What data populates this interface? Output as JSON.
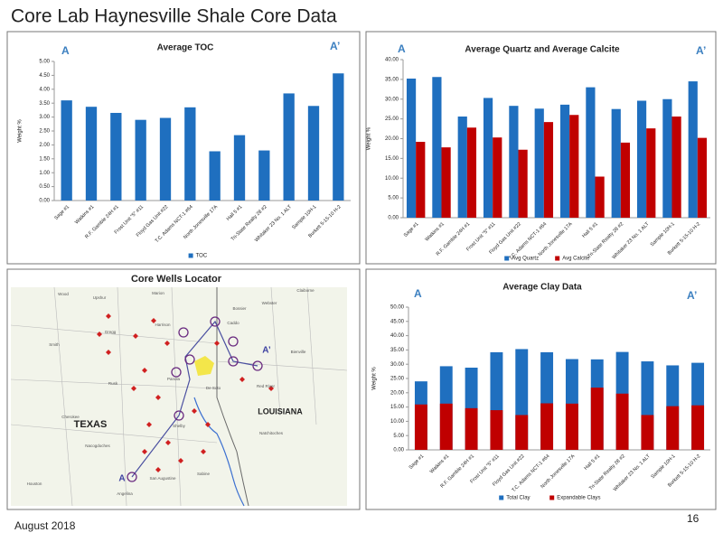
{
  "title": "Core Lab Haynesville Shale Core Data",
  "footer": "August 2018",
  "page_number": "16",
  "chart_data": [
    {
      "type": "bar",
      "title": "Average TOC",
      "annotations": [
        "A",
        "A’"
      ],
      "y_label": "Weight %",
      "categories": [
        "Sage #1",
        "Watkins #1",
        "R.F. Gamble 24H #1",
        "Frost Unit \"5\" #11",
        "Floyd Gas Unit #22",
        "T.C. Adams NCT-1 #64",
        "North Jonesville 17A",
        "Hall 5 #1",
        "Tri-State Realty 28 #2",
        "Whitaker 23 No. 1 ALT",
        "Sample 10H-1",
        "Burkett 5-15-10 H-2"
      ],
      "series": [
        {
          "name": "TOC",
          "color": "#1f6fbf",
          "values": [
            3.6,
            3.37,
            3.15,
            2.9,
            2.97,
            3.35,
            1.77,
            2.35,
            1.8,
            3.85,
            3.4,
            4.57
          ]
        }
      ],
      "ylim": [
        0,
        5
      ],
      "yticks": [
        {
          "value": 0,
          "label": "0.00"
        },
        {
          "value": 0.5,
          "label": "0.50"
        },
        {
          "value": 1,
          "label": "1.00"
        },
        {
          "value": 1.5,
          "label": "1.50"
        },
        {
          "value": 2,
          "label": "2.00"
        },
        {
          "value": 2.5,
          "label": "2.50"
        },
        {
          "value": 3,
          "label": "3.00"
        },
        {
          "value": 3.5,
          "label": "3.50"
        },
        {
          "value": 4,
          "label": "4.00"
        },
        {
          "value": 4.5,
          "label": "4.50"
        },
        {
          "value": 5,
          "label": "5.00"
        }
      ],
      "legend": "bottom",
      "bar_layout": "grouped"
    },
    {
      "type": "bar",
      "title": "Average Quartz and Average Calcite",
      "annotations": [
        "A",
        "A’"
      ],
      "y_label": "Weight %",
      "categories": [
        "Sage #1",
        "Watkins #1",
        "R.F. Gamble 24H #1",
        "Frost Unit \"5\" #11",
        "Floyd Gas Unit #22",
        "T.C. Adams NCT-1 #64",
        "North Jonesville 17A",
        "Hall 5 #1",
        "Tri-State Realty 28 #2",
        "Whitaker 23 No. 1 ALT",
        "Sample 10H-1",
        "Burkett 5-15-10 H-2"
      ],
      "series": [
        {
          "name": "Avg Quartz",
          "color": "#1f6fbf",
          "values": [
            35.2,
            35.6,
            25.6,
            30.3,
            28.3,
            27.6,
            28.6,
            33,
            27.5,
            29.6,
            30,
            34.5
          ]
        },
        {
          "name": "Avg Calcite",
          "color": "#c00000",
          "values": [
            19.2,
            17.8,
            22.8,
            20.3,
            17.2,
            24.2,
            26,
            10.4,
            19,
            22.6,
            25.6,
            20.2
          ]
        }
      ],
      "ylim": [
        0,
        40
      ],
      "yticks": [
        {
          "value": 0,
          "label": "0.00"
        },
        {
          "value": 5,
          "label": "5.00"
        },
        {
          "value": 10,
          "label": "10.00"
        },
        {
          "value": 15,
          "label": "15.00"
        },
        {
          "value": 20,
          "label": "20.00"
        },
        {
          "value": 25,
          "label": "25.00"
        },
        {
          "value": 30,
          "label": "30.00"
        },
        {
          "value": 35,
          "label": "35.00"
        },
        {
          "value": 40,
          "label": "40.00"
        }
      ],
      "legend": "bottom",
      "bar_layout": "grouped"
    },
    {
      "type": "bar",
      "title": "Average Clay Data",
      "annotations": [
        "A",
        "A’"
      ],
      "y_label": "Weight %",
      "categories": [
        "Sage #1",
        "Watkins #1",
        "R.F. Gamble 24H #1",
        "Frost Unit \"5\" #11",
        "Floyd Gas Unit #22",
        "T.C. Adams NCT-1 #64",
        "North Jonesville 17A",
        "Hall 5 #1",
        "Tri-State Realty 28 #2",
        "Whitaker 23 No. 1 ALT",
        "Sample 10H-1",
        "Burkett 5-15-10 H-2"
      ],
      "series": [
        {
          "name": "Total Clay",
          "color": "#1f6fbf",
          "values": [
            24,
            29.3,
            28.8,
            34.2,
            35.3,
            34.2,
            31.8,
            31.7,
            34.3,
            31,
            29.6,
            30.5
          ]
        },
        {
          "name": "Expandable Clays",
          "color": "#c00000",
          "values": [
            15.9,
            16.2,
            14.6,
            13.9,
            12.2,
            16.3,
            16.2,
            21.8,
            19.7,
            12.2,
            15.3,
            15.6
          ]
        }
      ],
      "ylim": [
        0,
        50
      ],
      "yticks": [
        {
          "value": 0,
          "label": "0.00"
        },
        {
          "value": 5,
          "label": "5.00"
        },
        {
          "value": 10,
          "label": "10.00"
        },
        {
          "value": 15,
          "label": "15.00"
        },
        {
          "value": 20,
          "label": "20.00"
        },
        {
          "value": 25,
          "label": "25.00"
        },
        {
          "value": 30,
          "label": "30.00"
        },
        {
          "value": 35,
          "label": "35.00"
        },
        {
          "value": 40,
          "label": "40.00"
        },
        {
          "value": 45,
          "label": "45.00"
        },
        {
          "value": 50,
          "label": "50.00"
        }
      ],
      "legend": "bottom",
      "bar_layout": "overlap"
    }
  ],
  "map": {
    "title": "Core Wells Locator",
    "labels": [
      "TEXAS",
      "LOUISIANA",
      "A",
      "A’",
      "Wood",
      "Upshur",
      "Marion",
      "Caddo",
      "Bossier",
      "Webster",
      "Claiborne",
      "Harrison",
      "Gregg",
      "Smith",
      "Rusk",
      "Panola",
      "De Soto",
      "Red River",
      "Bienville",
      "Cherokee",
      "Nacogdoches",
      "Shelby",
      "San Augustine",
      "Sabine",
      "Natchitoches",
      "Angelina",
      "Houston"
    ]
  }
}
